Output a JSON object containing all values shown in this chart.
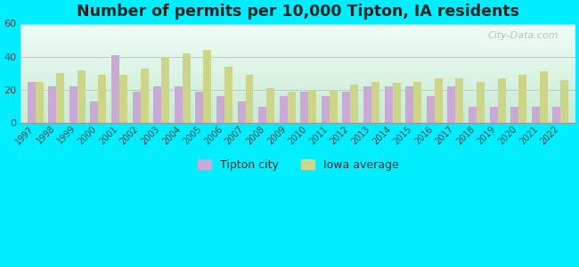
{
  "title": "Number of permits per 10,000 Tipton, IA residents",
  "years": [
    1997,
    1998,
    1999,
    2000,
    2001,
    2002,
    2003,
    2004,
    2005,
    2006,
    2007,
    2008,
    2009,
    2010,
    2011,
    2012,
    2013,
    2014,
    2015,
    2016,
    2017,
    2018,
    2019,
    2020,
    2021,
    2022
  ],
  "tipton": [
    25,
    22,
    22,
    13,
    41,
    19,
    22,
    22,
    19,
    16,
    13,
    10,
    16,
    19,
    16,
    19,
    22,
    22,
    22,
    16,
    22,
    10,
    10,
    10,
    10,
    10
  ],
  "iowa": [
    25,
    30,
    32,
    29,
    29,
    33,
    40,
    42,
    44,
    34,
    29,
    21,
    19,
    20,
    20,
    23,
    25,
    24,
    25,
    27,
    27,
    25,
    27,
    29,
    31,
    26
  ],
  "tipton_color": "#c8aad4",
  "iowa_color": "#cdd688",
  "background_color": "#00eeff",
  "plot_bg_color": "#e8f5e9",
  "ylim": [
    0,
    60
  ],
  "yticks": [
    0,
    20,
    40,
    60
  ],
  "bar_width": 0.38,
  "title_fontsize": 12.5,
  "legend_tipton": "Tipton city",
  "legend_iowa": "Iowa average",
  "grid_color": "#c8e6c9",
  "watermark": "City-Data.com"
}
